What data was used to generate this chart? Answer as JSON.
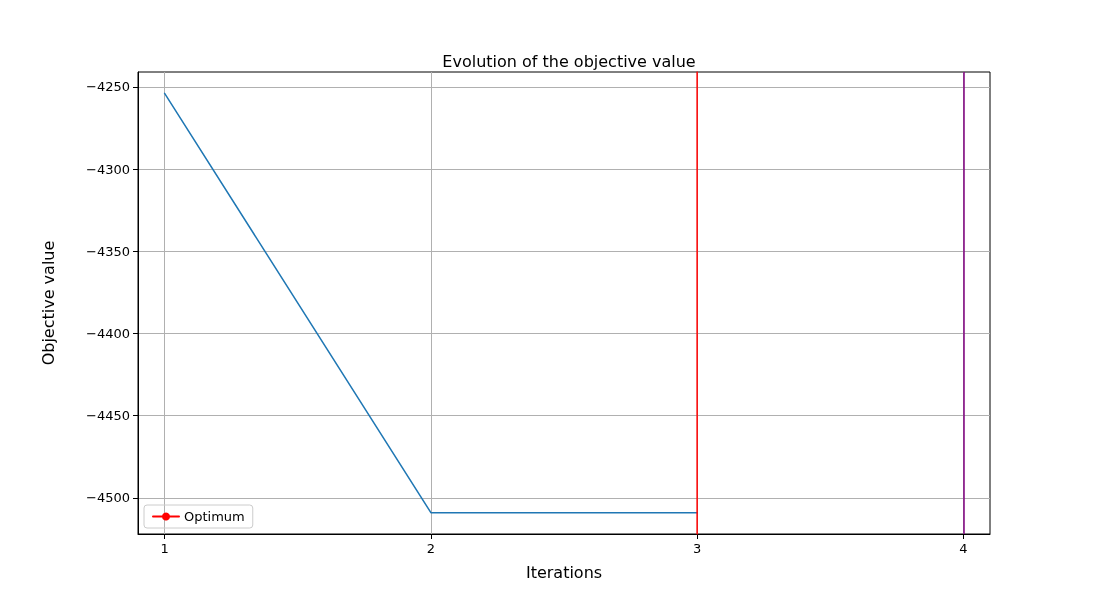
{
  "chart_data": {
    "type": "line",
    "title": "Evolution of the objective value",
    "xlabel": "Iterations",
    "ylabel": "Objective value",
    "x": [
      1,
      2,
      3
    ],
    "series": [
      {
        "color": "#1f77b4",
        "values": [
          -4254,
          -4509,
          -4509
        ]
      },
      {
        "name": "Optimum",
        "color": "#ff0000",
        "x": [
          3,
          3
        ],
        "values": [
          -4522,
          -4241
        ]
      }
    ],
    "xlim": [
      0.9,
      4.1
    ],
    "xticks": [
      1,
      2,
      3,
      4
    ],
    "ylim": [
      -4522,
      -4241
    ],
    "yticks": [
      {
        "value": -4250,
        "label": "−4250"
      },
      {
        "value": -4300,
        "label": "−4300"
      },
      {
        "value": -4350,
        "label": "−4350"
      },
      {
        "value": -4400,
        "label": "−4400"
      },
      {
        "value": -4450,
        "label": "−4450"
      },
      {
        "value": -4500,
        "label": "−4500"
      }
    ],
    "ref_lines": [
      {
        "axis": "x",
        "value": 4,
        "color": "#800080"
      }
    ],
    "grid": true,
    "legend": "bottom left",
    "marker": "none",
    "line_style": "solid"
  }
}
